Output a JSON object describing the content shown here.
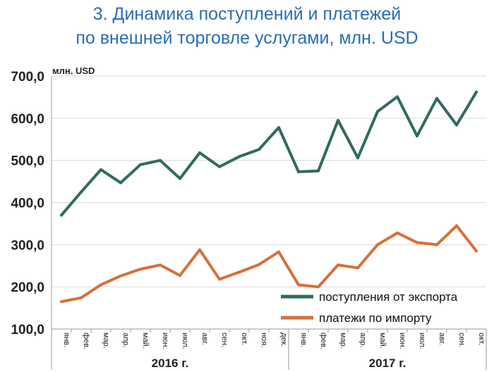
{
  "title_line1": "3. Динамика поступлений и платежей",
  "title_line2": "по внешней торговле услугами, млн. USD",
  "chart_data": {
    "type": "line",
    "title": "3. Динамика поступлений и платежей по внешней торговле услугами, млн. USD",
    "unit_label": "млн. USD",
    "categories": [
      "янв.",
      "фев.",
      "мар.",
      "апр.",
      "май.",
      "июн.",
      "июл.",
      "авг.",
      "сен.",
      "окт.",
      "ноя.",
      "дек.",
      "янв.",
      "фев.",
      "мар.",
      "апр.",
      "май.",
      "июн.",
      "июл.",
      "авг.",
      "сен.",
      "окт."
    ],
    "year_groups": [
      {
        "label": "2016 г.",
        "count": 12
      },
      {
        "label": "2017 г.",
        "count": 10
      }
    ],
    "ylim": [
      100,
      700
    ],
    "y_ticks": [
      "100,0",
      "200,0",
      "300,0",
      "400,0",
      "500,0",
      "600,0",
      "700,0"
    ],
    "grid": true,
    "legend_position": "bottom-right",
    "series": [
      {
        "name": "поступления от экспорта",
        "color": "#2e6b60",
        "values": [
          370,
          425,
          478,
          447,
          490,
          500,
          457,
          518,
          485,
          509,
          526,
          578,
          473,
          475,
          595,
          506,
          616,
          651,
          558,
          647,
          584,
          662
        ]
      },
      {
        "name": "платежи по импорту",
        "color": "#d5703a",
        "values": [
          165,
          174,
          205,
          226,
          242,
          252,
          227,
          288,
          218,
          235,
          253,
          283,
          205,
          200,
          252,
          245,
          300,
          328,
          305,
          300,
          345,
          285
        ]
      }
    ]
  }
}
